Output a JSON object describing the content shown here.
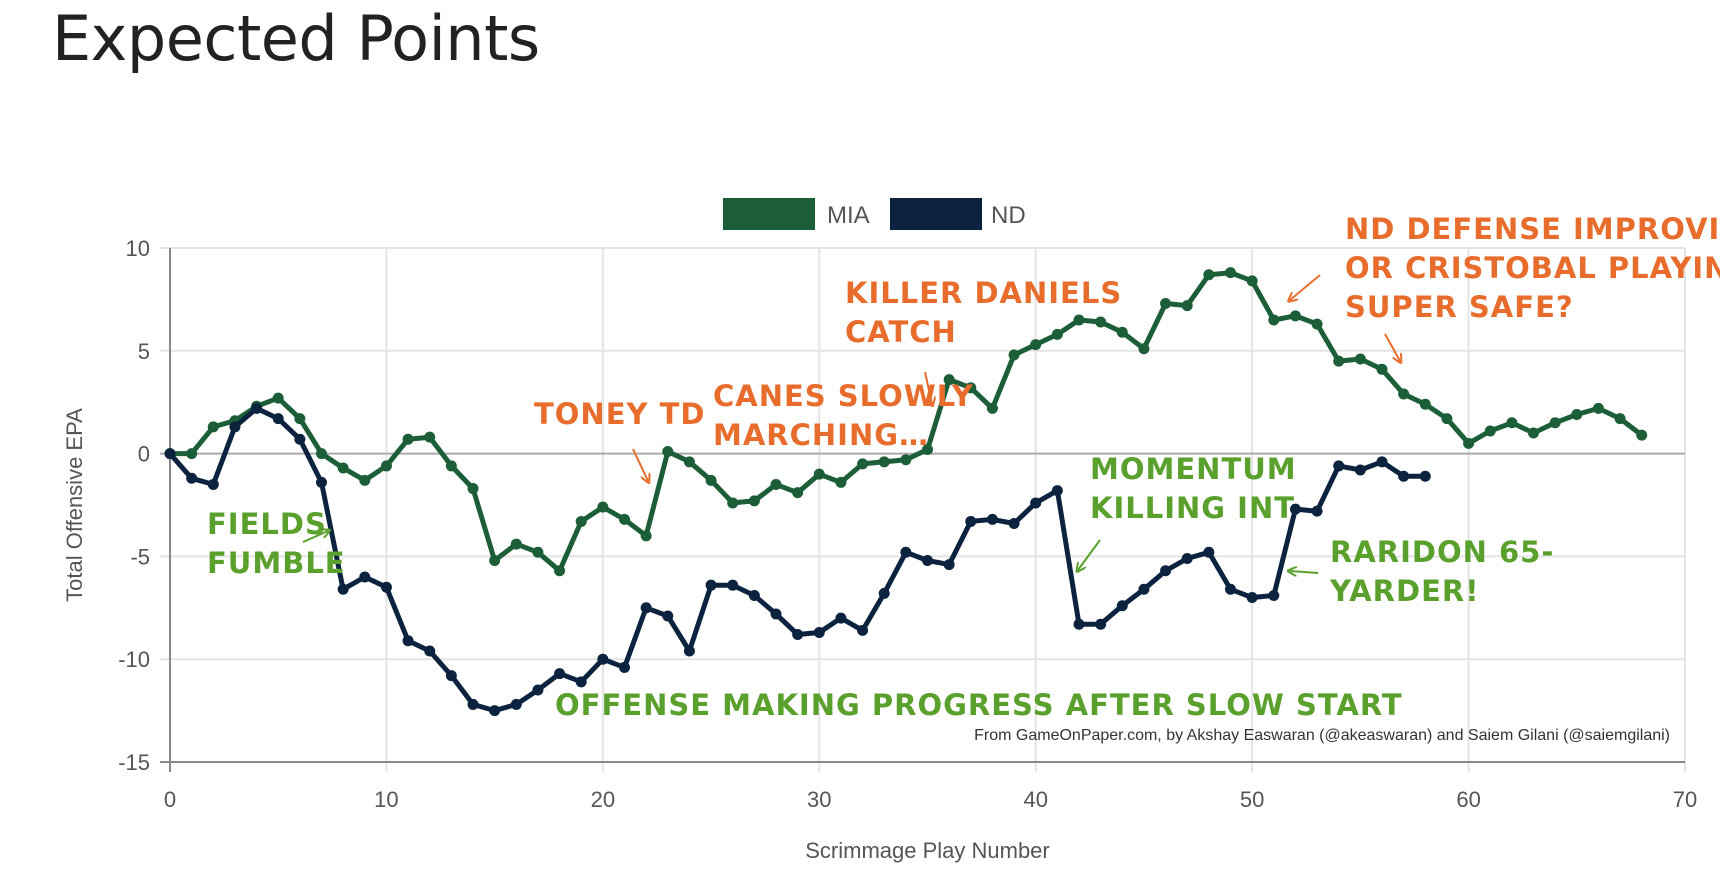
{
  "title": "Expected Points",
  "credit": "From GameOnPaper.com, by Akshay Easwaran (@akeaswaran) and Saiem Gilani (@saiemgilani)",
  "colors": {
    "mia": "#1b5e37",
    "nd": "#0c2340",
    "orange": "#e86d2c",
    "green": "#5aa02c",
    "grid": "#e4e4e4",
    "zero": "#aaaaaa"
  },
  "chart_data": {
    "type": "line",
    "xlabel": "Scrimmage Play Number",
    "ylabel": "Total Offensive EPA",
    "xlim": [
      0,
      70
    ],
    "ylim": [
      -15,
      10
    ],
    "x_ticks": [
      0,
      10,
      20,
      30,
      40,
      50,
      60,
      70
    ],
    "y_ticks": [
      10,
      5,
      0,
      -5,
      -10,
      -15
    ],
    "grid": true,
    "legend_position": "top-center",
    "series": [
      {
        "name": "MIA",
        "color": "#1b5e37",
        "values": [
          0,
          0,
          1.3,
          1.6,
          2.3,
          2.7,
          1.7,
          0,
          -0.7,
          -1.3,
          -0.6,
          0.7,
          0.8,
          -0.6,
          -1.7,
          -5.2,
          -4.4,
          -4.8,
          -5.7,
          -3.3,
          -2.6,
          -3.2,
          -4,
          0.1,
          -0.4,
          -1.3,
          -2.4,
          -2.3,
          -1.5,
          -1.9,
          -1,
          -1.4,
          -0.5,
          -0.4,
          -0.3,
          0.2,
          3.6,
          3.2,
          2.2,
          4.8,
          5.3,
          5.8,
          6.5,
          6.4,
          5.9,
          5.1,
          7.3,
          7.2,
          8.7,
          8.8,
          8.4,
          6.5,
          6.7,
          6.3,
          4.5,
          4.6,
          4.1,
          2.9,
          2.4,
          1.7,
          0.5,
          1.1,
          1.5,
          1,
          1.5,
          1.9,
          2.2,
          1.7,
          0.9
        ]
      },
      {
        "name": "ND",
        "color": "#0c2340",
        "values": [
          0,
          -1.2,
          -1.5,
          1.3,
          2.2,
          1.7,
          0.7,
          -1.4,
          -6.6,
          -6,
          -6.5,
          -9.1,
          -9.6,
          -10.8,
          -12.2,
          -12.5,
          -12.2,
          -11.5,
          -10.7,
          -11.1,
          -10,
          -10.4,
          -7.5,
          -7.9,
          -9.6,
          -6.4,
          -6.4,
          -6.9,
          -7.8,
          -8.8,
          -8.7,
          -8,
          -8.6,
          -6.8,
          -4.8,
          -5.2,
          -5.4,
          -3.3,
          -3.2,
          -3.4,
          -2.4,
          -1.8,
          -8.3,
          -8.3,
          -7.4,
          -6.6,
          -5.7,
          -5.1,
          -4.8,
          -6.6,
          -7,
          -6.9,
          -2.7,
          -2.8,
          -0.6,
          -0.8,
          -0.4,
          -1.1,
          -1.1
        ]
      }
    ],
    "annotations": [
      {
        "text": "FIELDS FUMBLE",
        "color": "green"
      },
      {
        "text": "TONEY TD",
        "color": "orange"
      },
      {
        "text": "CANES SLOWLY MARCHING…",
        "color": "orange"
      },
      {
        "text": "KILLER DANIELS CATCH",
        "color": "orange"
      },
      {
        "text": "ND DEFENSE IMPROVING, OR CRISTOBAL PLAYING SUPER SAFE?",
        "color": "orange"
      },
      {
        "text": "MOMENTUM KILLING INT",
        "color": "green"
      },
      {
        "text": "RARIDON 65-YARDER!",
        "color": "green"
      },
      {
        "text": "OFFENSE MAKING PROGRESS AFTER SLOW START",
        "color": "green"
      }
    ]
  },
  "annotation_lines": {
    "fields": [
      "FIELDS",
      "FUMBLE"
    ],
    "toney": [
      "TONEY TD"
    ],
    "canes": [
      "CANES SLOWLY",
      "MARCHING…"
    ],
    "killer": [
      "KILLER DANIELS",
      "CATCH"
    ],
    "nd_def": [
      "ND DEFENSE IMPROVING,",
      "OR CRISTOBAL PLAYING",
      "SUPER SAFE?"
    ],
    "momentum": [
      "MOMENTUM",
      "KILLING INT"
    ],
    "raridon": [
      "RARIDON 65-",
      "YARDER!"
    ],
    "offense": [
      "OFFENSE MAKING PROGRESS AFTER SLOW START"
    ]
  }
}
